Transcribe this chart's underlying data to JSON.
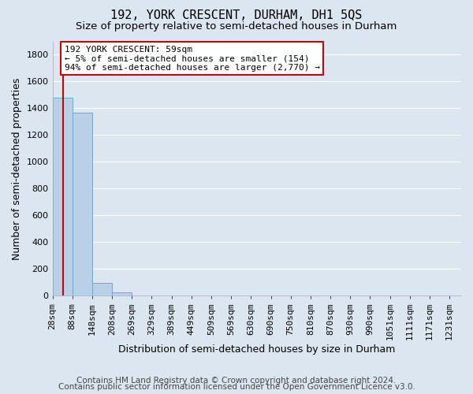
{
  "title": "192, YORK CRESCENT, DURHAM, DH1 5QS",
  "subtitle": "Size of property relative to semi-detached houses in Durham",
  "xlabel": "Distribution of semi-detached houses by size in Durham",
  "ylabel": "Number of semi-detached properties",
  "footer_line1": "Contains HM Land Registry data © Crown copyright and database right 2024.",
  "footer_line2": "Contains public sector information licensed under the Open Government Licence v3.0.",
  "bin_labels": [
    "28sqm",
    "88sqm",
    "148sqm",
    "208sqm",
    "269sqm",
    "329sqm",
    "389sqm",
    "449sqm",
    "509sqm",
    "569sqm",
    "630sqm",
    "690sqm",
    "750sqm",
    "810sqm",
    "870sqm",
    "930sqm",
    "990sqm",
    "1051sqm",
    "1111sqm",
    "1171sqm",
    "1231sqm"
  ],
  "bin_edges": [
    28,
    88,
    148,
    208,
    269,
    329,
    389,
    449,
    509,
    569,
    630,
    690,
    750,
    810,
    870,
    930,
    990,
    1051,
    1111,
    1171,
    1231
  ],
  "bar_values": [
    1480,
    1370,
    95,
    25,
    0,
    0,
    0,
    0,
    0,
    0,
    0,
    0,
    0,
    0,
    0,
    0,
    0,
    0,
    0,
    0
  ],
  "bar_color": "#b8d0e8",
  "bar_edge_color": "#6aaad4",
  "ylim": [
    0,
    1900
  ],
  "yticks": [
    0,
    200,
    400,
    600,
    800,
    1000,
    1200,
    1400,
    1600,
    1800
  ],
  "property_size": 59,
  "annotation_line1": "192 YORK CRESCENT: 59sqm",
  "annotation_line2": "← 5% of semi-detached houses are smaller (154)",
  "annotation_line3": "94% of semi-detached houses are larger (2,770) →",
  "vline_color": "#cc0000",
  "annotation_box_facecolor": "#ffffff",
  "annotation_box_edgecolor": "#cc0000",
  "background_color": "#dce6f0",
  "plot_bg_color": "#dce6f0",
  "grid_color": "#ffffff",
  "title_fontsize": 11,
  "subtitle_fontsize": 9.5,
  "axis_label_fontsize": 9,
  "tick_fontsize": 8,
  "annotation_fontsize": 8,
  "footer_fontsize": 7.5
}
